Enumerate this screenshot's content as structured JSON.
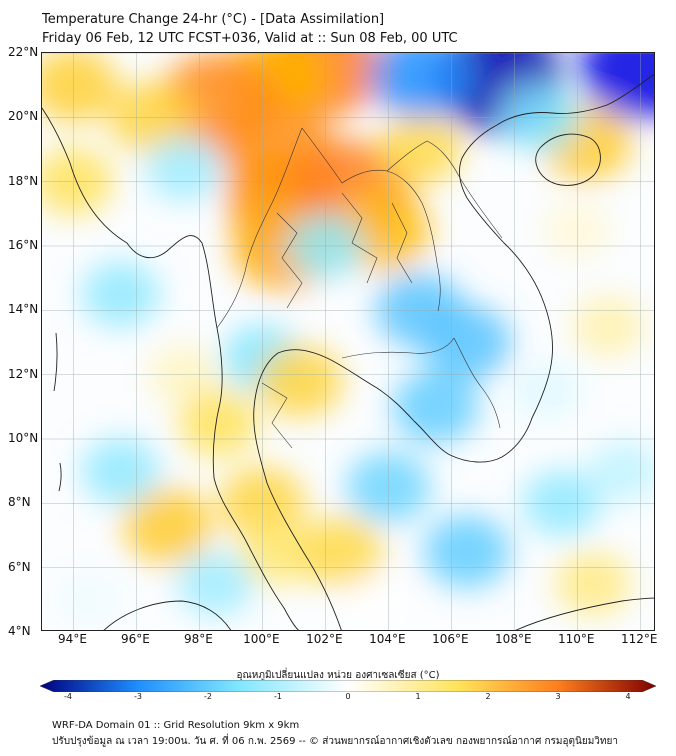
{
  "title": {
    "line1": "Temperature Change 24-hr (°C) - [Data Assimilation]",
    "line2": "Friday 06 Feb, 12 UTC FCST+036, Valid at :: Sun 08 Feb, 00 UTC"
  },
  "map": {
    "lat_range": [
      4,
      22
    ],
    "lon_range": [
      93,
      112.5
    ],
    "lat_ticks": [
      "4°N",
      "6°N",
      "8°N",
      "10°N",
      "12°N",
      "14°N",
      "16°N",
      "18°N",
      "20°N",
      "22°N"
    ],
    "lon_ticks": [
      "94°E",
      "96°E",
      "98°E",
      "100°E",
      "102°E",
      "104°E",
      "106°E",
      "108°E",
      "110°E",
      "112°E"
    ],
    "fields": [
      {
        "lat": 21.6,
        "lon": 102.0,
        "val": 3.0
      },
      {
        "lat": 21.3,
        "lon": 100.5,
        "val": 2.0
      },
      {
        "lat": 20.5,
        "lon": 98.6,
        "val": 2.8
      },
      {
        "lat": 19.0,
        "lon": 100.5,
        "val": 2.7
      },
      {
        "lat": 17.5,
        "lon": 100.6,
        "val": 2.6
      },
      {
        "lat": 17.7,
        "lon": 102.8,
        "val": 3.0
      },
      {
        "lat": 16.0,
        "lon": 100.7,
        "val": 2.2
      },
      {
        "lat": 16.5,
        "lon": 103.8,
        "val": 1.8
      },
      {
        "lat": 20.0,
        "lon": 96.5,
        "val": 1.3
      },
      {
        "lat": 21.0,
        "lon": 94.0,
        "val": 1.4
      },
      {
        "lat": 18.0,
        "lon": 94.0,
        "val": 1.0
      },
      {
        "lat": 19.0,
        "lon": 105.0,
        "val": 1.2
      },
      {
        "lat": 19.2,
        "lon": 110.3,
        "val": 1.5
      },
      {
        "lat": 21.2,
        "lon": 107.5,
        "val": -3.5
      },
      {
        "lat": 21.3,
        "lon": 105.0,
        "val": -2.0
      },
      {
        "lat": 21.5,
        "lon": 112.0,
        "val": -3.0
      },
      {
        "lat": 20.0,
        "lon": 108.8,
        "val": -1.0
      },
      {
        "lat": 18.4,
        "lon": 97.5,
        "val": -0.8
      },
      {
        "lat": 16.0,
        "lon": 102.0,
        "val": -0.9
      },
      {
        "lat": 14.5,
        "lon": 95.5,
        "val": -0.9
      },
      {
        "lat": 14.0,
        "lon": 105.0,
        "val": -1.4
      },
      {
        "lat": 13.0,
        "lon": 106.5,
        "val": -1.4
      },
      {
        "lat": 12.5,
        "lon": 100.0,
        "val": -1.0
      },
      {
        "lat": 11.0,
        "lon": 105.5,
        "val": -1.3
      },
      {
        "lat": 11.5,
        "lon": 109.0,
        "val": -0.4
      },
      {
        "lat": 13.5,
        "lon": 111.0,
        "val": 0.6
      },
      {
        "lat": 16.5,
        "lon": 110.0,
        "val": 0.4
      },
      {
        "lat": 11.8,
        "lon": 101.2,
        "val": 1.3
      },
      {
        "lat": 12.0,
        "lon": 97.5,
        "val": 0.5
      },
      {
        "lat": 10.5,
        "lon": 98.6,
        "val": 1.0
      },
      {
        "lat": 7.3,
        "lon": 97.0,
        "val": 1.5
      },
      {
        "lat": 8.0,
        "lon": 100.0,
        "val": 1.3
      },
      {
        "lat": 6.5,
        "lon": 100.5,
        "val": 0.9
      },
      {
        "lat": 6.5,
        "lon": 102.5,
        "val": 1.2
      },
      {
        "lat": 9.0,
        "lon": 95.5,
        "val": -0.9
      },
      {
        "lat": 8.5,
        "lon": 104.0,
        "val": -1.2
      },
      {
        "lat": 6.5,
        "lon": 106.5,
        "val": -1.3
      },
      {
        "lat": 8.0,
        "lon": 109.5,
        "val": -0.9
      },
      {
        "lat": 5.5,
        "lon": 110.5,
        "val": 0.8
      },
      {
        "lat": 5.0,
        "lon": 94.5,
        "val": -0.3
      },
      {
        "lat": 4.8,
        "lon": 103.5,
        "val": 0.2
      },
      {
        "lat": 5.5,
        "lon": 98.5,
        "val": -0.8
      },
      {
        "lat": 9.0,
        "lon": 111.5,
        "val": -0.6
      }
    ]
  },
  "colorbar": {
    "title": "อุณหภูมิเปลี่ยนแปลง หน่วย องศาเซลเซียส (°C)",
    "ticks": [
      "-4",
      "-3",
      "-2",
      "-1",
      "0",
      "1",
      "2",
      "3",
      "4"
    ],
    "min": -4,
    "max": 4
  },
  "footer": {
    "line1": "WRF-DA Domain 01 :: Grid Resolution 9km x 9km",
    "line2": "ปรับปรุงข้อมูล ณ เวลา 19:00น. วัน ศ. ที่ 06 ก.พ. 2569 -- © ส่วนพยากรณ์อากาศเชิงตัวเลข กองพยากรณ์อากาศ กรมอุตุนิยมวิทยา"
  },
  "colors": {
    "cold_max": "#00007f",
    "cold": "#1e8fff",
    "cool": "#7fe6ff",
    "neutral": "#ffffff",
    "warm": "#ffe35a",
    "hot": "#ff7f1e",
    "hot_max": "#7f0000",
    "coast": "#222222",
    "border": "#333333"
  }
}
